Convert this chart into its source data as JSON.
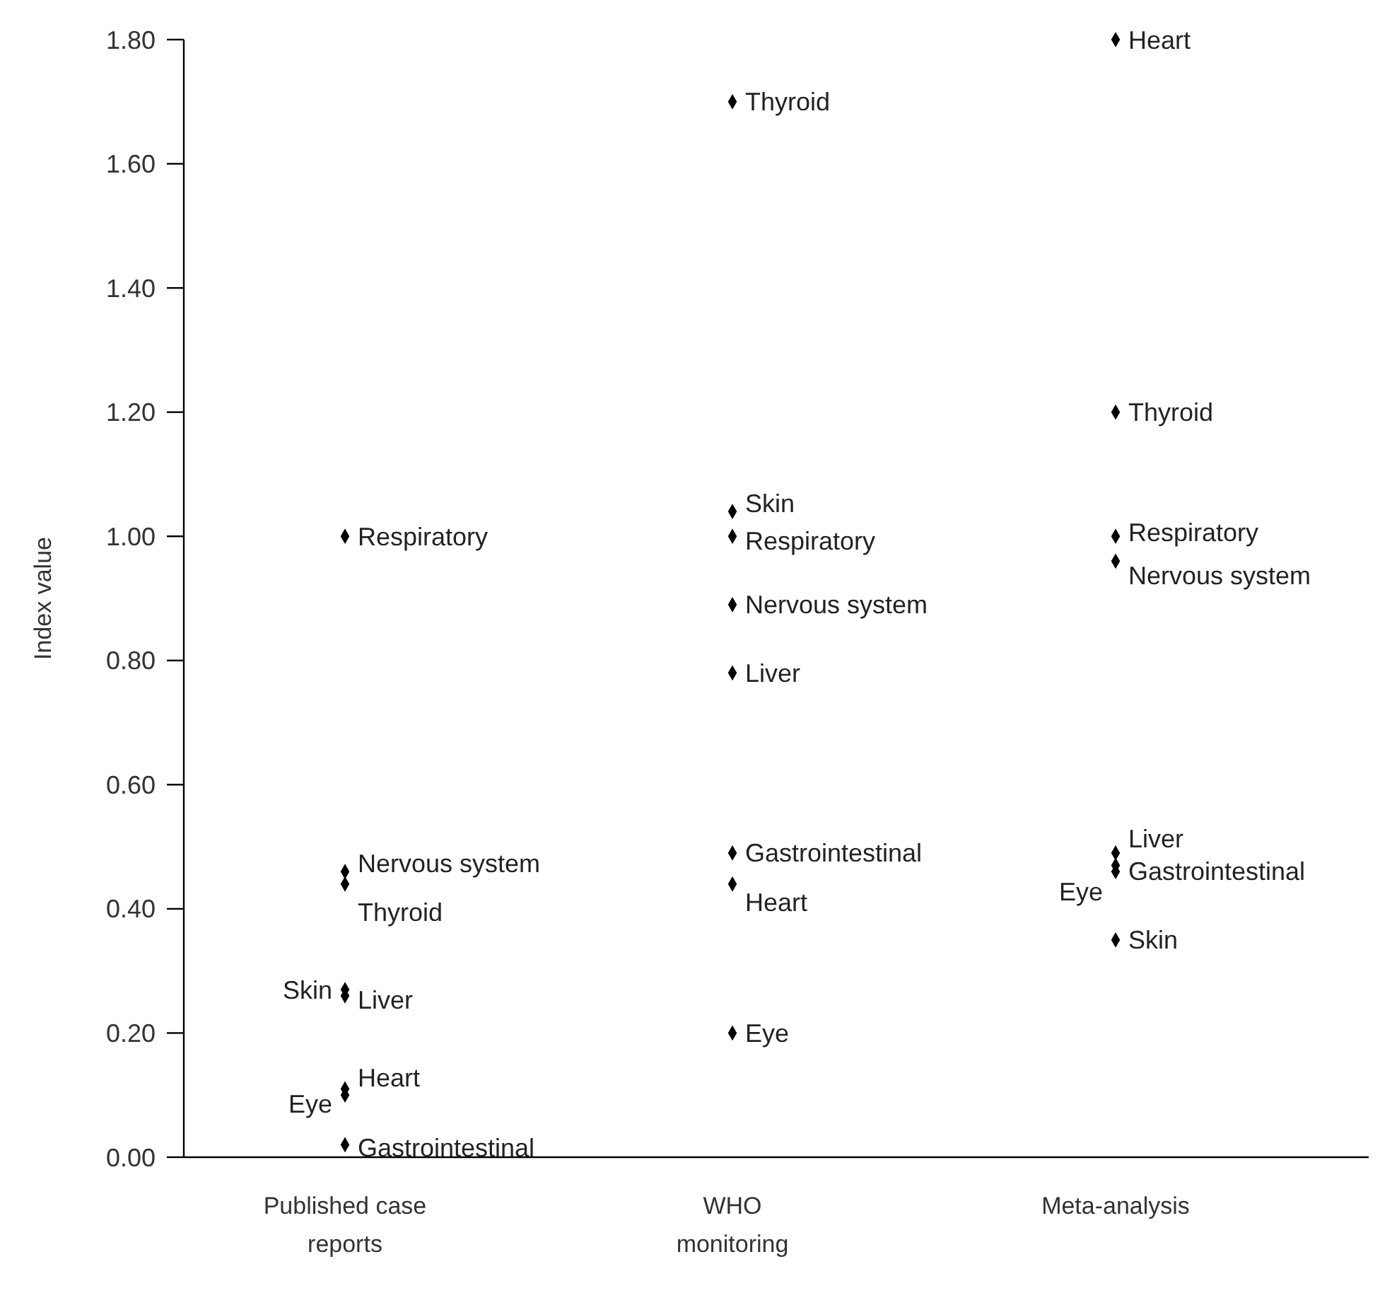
{
  "chart_data": {
    "type": "scatter",
    "ylabel": "Index value",
    "categories": [
      "Published case reports",
      "WHO monitoring",
      "Meta-analysis"
    ],
    "ylim": [
      0,
      1.8
    ],
    "yticks": [
      {
        "value": 0,
        "label": "0.00"
      },
      {
        "value": 0.2,
        "label": "0.20"
      },
      {
        "value": 0.4,
        "label": "0.40"
      },
      {
        "value": 0.6,
        "label": "0.60"
      },
      {
        "value": 0.8,
        "label": "0.80"
      },
      {
        "value": 1,
        "label": "1.00"
      },
      {
        "value": 1.2,
        "label": "1.20"
      },
      {
        "value": 1.4,
        "label": "1.40"
      },
      {
        "value": 1.6,
        "label": "1.60"
      },
      {
        "value": 1.8,
        "label": "1.80"
      }
    ],
    "marker": "diamond",
    "grid": false,
    "series": [
      {
        "name": "Respiratory",
        "color": "#000000",
        "values": [
          1.0,
          1.0,
          1.0
        ]
      },
      {
        "name": "Nervous system",
        "color": "#000000",
        "values": [
          0.46,
          0.89,
          0.96
        ]
      },
      {
        "name": "Thyroid",
        "color": "#000000",
        "values": [
          0.44,
          1.7,
          1.2
        ]
      },
      {
        "name": "Skin",
        "color": "#000000",
        "values": [
          0.27,
          1.04,
          0.35
        ]
      },
      {
        "name": "Liver",
        "color": "#000000",
        "values": [
          0.26,
          0.78,
          0.49
        ]
      },
      {
        "name": "Heart",
        "color": "#000000",
        "values": [
          0.11,
          0.44,
          1.8
        ]
      },
      {
        "name": "Eye",
        "color": "#000000",
        "values": [
          0.1,
          0.2,
          0.46
        ]
      },
      {
        "name": "Gastrointestinal",
        "color": "#000000",
        "values": [
          0.02,
          0.49,
          0.47
        ]
      }
    ]
  }
}
